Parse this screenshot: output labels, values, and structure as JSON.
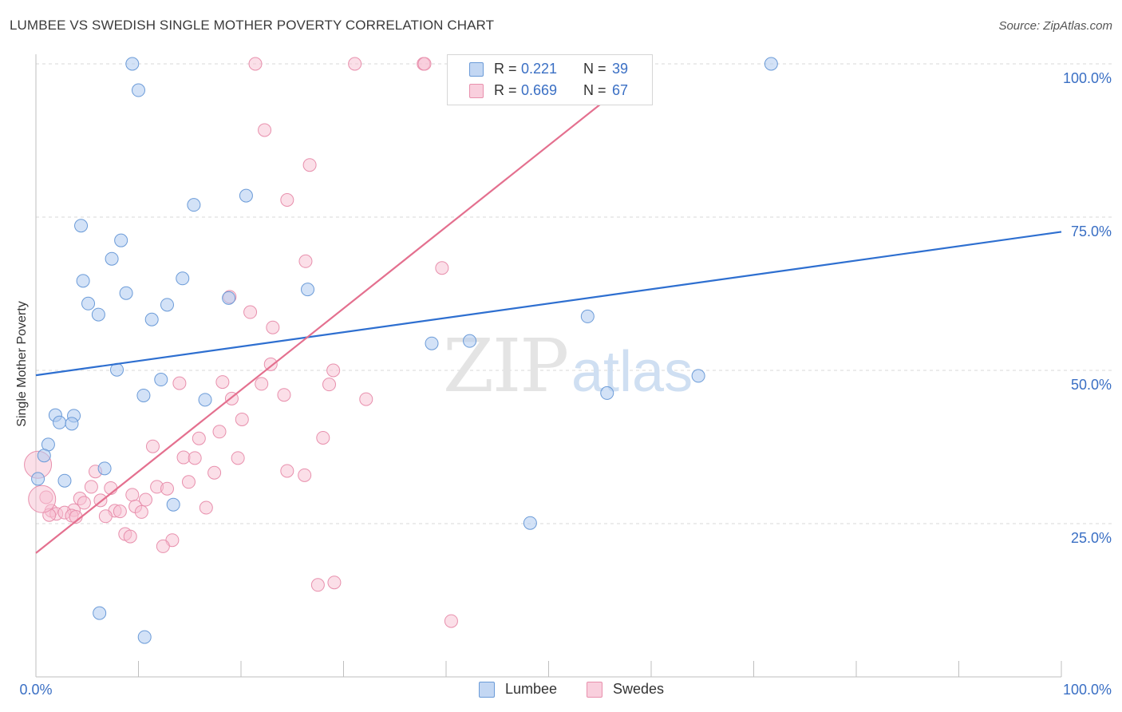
{
  "header": {
    "title": "LUMBEE VS SWEDISH SINGLE MOTHER POVERTY CORRELATION CHART",
    "source": "Source: ZipAtlas.com"
  },
  "watermark": {
    "zip": "ZIP",
    "atlas": "atlas"
  },
  "legend": {
    "r_label": "R =",
    "n_label": "N =",
    "rows": [
      {
        "name": "Lumbee",
        "r": "0.221",
        "n": "39"
      },
      {
        "name": "Swedes",
        "r": "0.669",
        "n": "67"
      }
    ]
  },
  "colors": {
    "lumbee_fill": "#aecbf0",
    "lumbee_stroke": "#6b9bd8",
    "lumbee_line": "#2e6fd0",
    "swedes_fill": "#f7c0d2",
    "swedes_stroke": "#e890ad",
    "swedes_line": "#e4708f",
    "axis_label": "#3a6fc4",
    "grid": "#d9d9d9"
  },
  "chart_data": {
    "type": "scatter",
    "title": "LUMBEE VS SWEDISH SINGLE MOTHER POVERTY CORRELATION CHART",
    "xlabel": "",
    "ylabel": "Single Mother Poverty",
    "xlim": [
      0,
      100
    ],
    "ylim": [
      0,
      100
    ],
    "x_tick_labels": [
      "0.0%",
      "100.0%"
    ],
    "y_ticks": [
      25,
      50,
      75,
      100
    ],
    "y_tick_labels": [
      "25.0%",
      "50.0%",
      "75.0%",
      "100.0%"
    ],
    "grid": true,
    "legend_position": "top-center",
    "series": [
      {
        "name": "Lumbee",
        "r": 0.221,
        "n": 39,
        "trend": {
          "x": [
            0,
            100
          ],
          "y": [
            49.2,
            72.6
          ]
        },
        "points": [
          [
            9.4,
            100
          ],
          [
            71.7,
            100
          ],
          [
            10.0,
            95.7
          ],
          [
            20.5,
            78.5
          ],
          [
            15.4,
            77
          ],
          [
            4.4,
            73.6
          ],
          [
            8.3,
            71.2
          ],
          [
            7.4,
            68.2
          ],
          [
            14.3,
            65
          ],
          [
            4.6,
            64.6
          ],
          [
            8.8,
            62.6
          ],
          [
            26.5,
            63.2
          ],
          [
            18.8,
            61.8
          ],
          [
            5.1,
            60.9
          ],
          [
            12.8,
            60.7
          ],
          [
            6.1,
            59.1
          ],
          [
            11.3,
            58.3
          ],
          [
            53.8,
            58.8
          ],
          [
            38.6,
            54.4
          ],
          [
            42.3,
            54.8
          ],
          [
            7.9,
            50.1
          ],
          [
            12.2,
            48.5
          ],
          [
            64.6,
            49.1
          ],
          [
            10.5,
            45.9
          ],
          [
            16.5,
            45.2
          ],
          [
            55.7,
            46.3
          ],
          [
            1.9,
            42.7
          ],
          [
            3.7,
            42.6
          ],
          [
            2.3,
            41.5
          ],
          [
            3.5,
            41.3
          ],
          [
            1.2,
            37.9
          ],
          [
            0.8,
            36.1
          ],
          [
            6.7,
            34
          ],
          [
            0.2,
            32.3
          ],
          [
            2.8,
            32
          ],
          [
            13.4,
            28.1
          ],
          [
            48.2,
            25.1
          ],
          [
            6.2,
            10.4
          ],
          [
            10.6,
            6.5
          ]
        ]
      },
      {
        "name": "Swedes",
        "r": 0.669,
        "n": 67,
        "trend": {
          "x": [
            0,
            60
          ],
          "y": [
            20.2,
            100
          ]
        },
        "points": [
          [
            21.4,
            100
          ],
          [
            31.1,
            100
          ],
          [
            37.8,
            100
          ],
          [
            37.9,
            100
          ],
          [
            59.2,
            100
          ],
          [
            22.3,
            89.2
          ],
          [
            26.7,
            83.5
          ],
          [
            24.5,
            77.8
          ],
          [
            26.3,
            67.8
          ],
          [
            39.6,
            66.7
          ],
          [
            18.9,
            62
          ],
          [
            20.9,
            59.5
          ],
          [
            23.1,
            57
          ],
          [
            22.9,
            51
          ],
          [
            29.0,
            50
          ],
          [
            14.0,
            47.9
          ],
          [
            18.2,
            48.1
          ],
          [
            22.0,
            47.8
          ],
          [
            28.6,
            47.7
          ],
          [
            24.2,
            46
          ],
          [
            32.2,
            45.3
          ],
          [
            19.1,
            45.4
          ],
          [
            20.1,
            42
          ],
          [
            28.0,
            39
          ],
          [
            17.9,
            40
          ],
          [
            15.9,
            38.9
          ],
          [
            11.4,
            37.6
          ],
          [
            14.4,
            35.8
          ],
          [
            15.5,
            35.7
          ],
          [
            19.7,
            35.7
          ],
          [
            24.5,
            33.6
          ],
          [
            17.4,
            33.3
          ],
          [
            5.8,
            33.5
          ],
          [
            26.2,
            32.9
          ],
          [
            14.9,
            31.8
          ],
          [
            5.4,
            31
          ],
          [
            7.3,
            30.8
          ],
          [
            11.8,
            31
          ],
          [
            12.8,
            30.7
          ],
          [
            9.4,
            29.7
          ],
          [
            1.0,
            29.3
          ],
          [
            4.3,
            29.1
          ],
          [
            6.3,
            28.8
          ],
          [
            10.7,
            28.9
          ],
          [
            4.7,
            28.4
          ],
          [
            9.7,
            27.8
          ],
          [
            16.6,
            27.6
          ],
          [
            1.5,
            27.1
          ],
          [
            3.7,
            27.2
          ],
          [
            7.7,
            27.1
          ],
          [
            8.2,
            27
          ],
          [
            10.3,
            26.9
          ],
          [
            2.0,
            26.6
          ],
          [
            2.8,
            26.8
          ],
          [
            3.5,
            26.3
          ],
          [
            1.3,
            26.4
          ],
          [
            3.9,
            26.1
          ],
          [
            6.8,
            26.2
          ],
          [
            8.7,
            23.3
          ],
          [
            9.2,
            22.9
          ],
          [
            13.3,
            22.3
          ],
          [
            12.4,
            21.3
          ],
          [
            27.5,
            15
          ],
          [
            29.1,
            15.4
          ],
          [
            40.5,
            9.1
          ],
          [
            0.2,
            34.6
          ],
          [
            0.6,
            29
          ]
        ]
      }
    ]
  }
}
